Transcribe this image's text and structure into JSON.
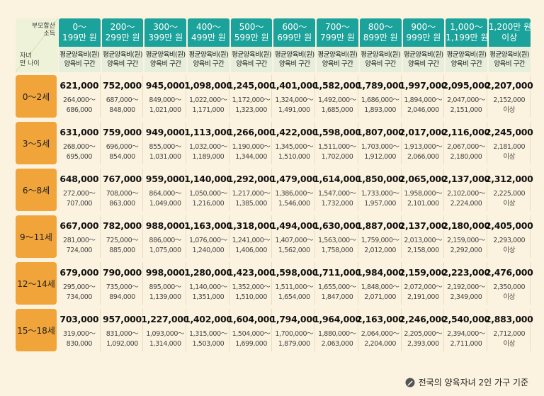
{
  "corner": {
    "top_label_1": "부모합산",
    "top_label_2": "소득",
    "bottom_label_1": "자녀",
    "bottom_label_2": "만 나이"
  },
  "income_brackets": [
    {
      "line1": "0～",
      "line2": "199만 원"
    },
    {
      "line1": "200～",
      "line2": "299만 원"
    },
    {
      "line1": "300～",
      "line2": "399만 원"
    },
    {
      "line1": "400～",
      "line2": "499만 원"
    },
    {
      "line1": "500～",
      "line2": "599만 원"
    },
    {
      "line1": "600～",
      "line2": "699만 원"
    },
    {
      "line1": "700～",
      "line2": "799만 원"
    },
    {
      "line1": "800～",
      "line2": "899만 원"
    },
    {
      "line1": "900～",
      "line2": "999만 원"
    },
    {
      "line1": "1,000～",
      "line2": "1,199만 원"
    },
    {
      "line1": "1,200만 원",
      "line2": "이상"
    }
  ],
  "sub_header": {
    "avg_label": "평균양육비(원)",
    "range_label": "양육비 구간"
  },
  "rows": [
    {
      "age": "0～2세",
      "cells": [
        {
          "avg": "621,000",
          "lo": "264,000～",
          "hi": "686,000"
        },
        {
          "avg": "752,000",
          "lo": "687,000～",
          "hi": "848,000"
        },
        {
          "avg": "945,000",
          "lo": "849,000～",
          "hi": "1,021,000"
        },
        {
          "avg": "1,098,000",
          "lo": "1,022,000～",
          "hi": "1,171,000"
        },
        {
          "avg": "1,245,000",
          "lo": "1,172,000～",
          "hi": "1,323,000"
        },
        {
          "avg": "1,401,000",
          "lo": "1,324,000～",
          "hi": "1,491,000"
        },
        {
          "avg": "1,582,000",
          "lo": "1,492,000～",
          "hi": "1,685,000"
        },
        {
          "avg": "1,789,000",
          "lo": "1,686,000～",
          "hi": "1,893,000"
        },
        {
          "avg": "1,997,000",
          "lo": "1,894,000～",
          "hi": "2,046,000"
        },
        {
          "avg": "2,095,000",
          "lo": "2,047,000～",
          "hi": "2,151,000"
        },
        {
          "avg": "2,207,000",
          "lo": "2,152,000",
          "hi": "이상"
        }
      ]
    },
    {
      "age": "3～5세",
      "cells": [
        {
          "avg": "631,000",
          "lo": "268,000～",
          "hi": "695,000"
        },
        {
          "avg": "759,000",
          "lo": "696,000～",
          "hi": "854,000"
        },
        {
          "avg": "949,000",
          "lo": "855,000～",
          "hi": "1,031,000"
        },
        {
          "avg": "1,113,000",
          "lo": "1,032,000～",
          "hi": "1,189,000"
        },
        {
          "avg": "1,266,000",
          "lo": "1,190,000～",
          "hi": "1,344,000"
        },
        {
          "avg": "1,422,000",
          "lo": "1,345,000～",
          "hi": "1,510,000"
        },
        {
          "avg": "1,598,000",
          "lo": "1,511,000～",
          "hi": "1,702,000"
        },
        {
          "avg": "1,807,000",
          "lo": "1,703,000～",
          "hi": "1,912,000"
        },
        {
          "avg": "2,017,000",
          "lo": "1,913,000～",
          "hi": "2,066,000"
        },
        {
          "avg": "2,116,000",
          "lo": "2,067,000～",
          "hi": "2,180,000"
        },
        {
          "avg": "2,245,000",
          "lo": "2,181,000",
          "hi": "이상"
        }
      ]
    },
    {
      "age": "6～8세",
      "cells": [
        {
          "avg": "648,000",
          "lo": "272,000～",
          "hi": "707,000"
        },
        {
          "avg": "767,000",
          "lo": "708,000～",
          "hi": "863,000"
        },
        {
          "avg": "959,000",
          "lo": "864,000～",
          "hi": "1,049,000"
        },
        {
          "avg": "1,140,000",
          "lo": "1,050,000～",
          "hi": "1,216,000"
        },
        {
          "avg": "1,292,000",
          "lo": "1,217,000～",
          "hi": "1,385,000"
        },
        {
          "avg": "1,479,000",
          "lo": "1,386,000～",
          "hi": "1,546,000"
        },
        {
          "avg": "1,614,000",
          "lo": "1,547,000～",
          "hi": "1,732,000"
        },
        {
          "avg": "1,850,000",
          "lo": "1,733,000～",
          "hi": "1,957,000"
        },
        {
          "avg": "2,065,000",
          "lo": "1,958,000～",
          "hi": "2,101,000"
        },
        {
          "avg": "2,137,000",
          "lo": "2,102,000～",
          "hi": "2,224,000"
        },
        {
          "avg": "2,312,000",
          "lo": "2,225,000",
          "hi": "이상"
        }
      ]
    },
    {
      "age": "9～11세",
      "cells": [
        {
          "avg": "667,000",
          "lo": "281,000～",
          "hi": "724,000"
        },
        {
          "avg": "782,000",
          "lo": "725,000～",
          "hi": "885,000"
        },
        {
          "avg": "988,000",
          "lo": "886,000～",
          "hi": "1,075,000"
        },
        {
          "avg": "1,163,000",
          "lo": "1,076,000～",
          "hi": "1,240,000"
        },
        {
          "avg": "1,318,000",
          "lo": "1,241,000～",
          "hi": "1,406,000"
        },
        {
          "avg": "1,494,000",
          "lo": "1,407,000～",
          "hi": "1,562,000"
        },
        {
          "avg": "1,630,000",
          "lo": "1,563,000～",
          "hi": "1,758,000"
        },
        {
          "avg": "1,887,000",
          "lo": "1,759,000～",
          "hi": "2,012,000"
        },
        {
          "avg": "2,137,000",
          "lo": "2,013,000～",
          "hi": "2,158,000"
        },
        {
          "avg": "2,180,000",
          "lo": "2,159,000～",
          "hi": "2,292,000"
        },
        {
          "avg": "2,405,000",
          "lo": "2,293,000",
          "hi": "이상"
        }
      ]
    },
    {
      "age": "12～14세",
      "cells": [
        {
          "avg": "679,000",
          "lo": "295,000～",
          "hi": "734,000"
        },
        {
          "avg": "790,000",
          "lo": "735,000～",
          "hi": "894,000"
        },
        {
          "avg": "998,000",
          "lo": "895,000～",
          "hi": "1,139,000"
        },
        {
          "avg": "1,280,000",
          "lo": "1,140,000～",
          "hi": "1,351,000"
        },
        {
          "avg": "1,423,000",
          "lo": "1,352,000～",
          "hi": "1,510,000"
        },
        {
          "avg": "1,598,000",
          "lo": "1,511,000～",
          "hi": "1,654,000"
        },
        {
          "avg": "1,711,000",
          "lo": "1,655,000～",
          "hi": "1,847,000"
        },
        {
          "avg": "1,984,000",
          "lo": "1,848,000～",
          "hi": "2,071,000"
        },
        {
          "avg": "2,159,000",
          "lo": "2,072,000～",
          "hi": "2,191,000"
        },
        {
          "avg": "2,223,000",
          "lo": "2,192,000～",
          "hi": "2,349,000"
        },
        {
          "avg": "2,476,000",
          "lo": "2,350,000",
          "hi": "이상"
        }
      ]
    },
    {
      "age": "15～18세",
      "cells": [
        {
          "avg": "703,000",
          "lo": "319,000～",
          "hi": "830,000"
        },
        {
          "avg": "957,000",
          "lo": "831,000～",
          "hi": "1,092,000"
        },
        {
          "avg": "1,227,000",
          "lo": "1,093,000～",
          "hi": "1,314,000"
        },
        {
          "avg": "1,402,000",
          "lo": "1,315,000～",
          "hi": "1,503,000"
        },
        {
          "avg": "1,604,000",
          "lo": "1,504,000～",
          "hi": "1,699,000"
        },
        {
          "avg": "1,794,000",
          "lo": "1,700,000～",
          "hi": "1,879,000"
        },
        {
          "avg": "1,964,000",
          "lo": "1,880,000～",
          "hi": "2,063,000"
        },
        {
          "avg": "2,163,000",
          "lo": "2,064,000～",
          "hi": "2,204,000"
        },
        {
          "avg": "2,246,000",
          "lo": "2,205,000～",
          "hi": "2,393,000"
        },
        {
          "avg": "2,540,000",
          "lo": "2,394,000～",
          "hi": "2,711,000"
        },
        {
          "avg": "2,883,000",
          "lo": "2,712,000",
          "hi": "이상"
        }
      ]
    }
  ],
  "footnote": {
    "icon": "pen-icon",
    "text": "전국의 양육자녀 2인 가구 기준"
  },
  "colors": {
    "header_teal": "#1ba29a",
    "age_orange": "#f0a43a",
    "background": "#fbf3df",
    "subheader_bg": "#e7eedb"
  }
}
